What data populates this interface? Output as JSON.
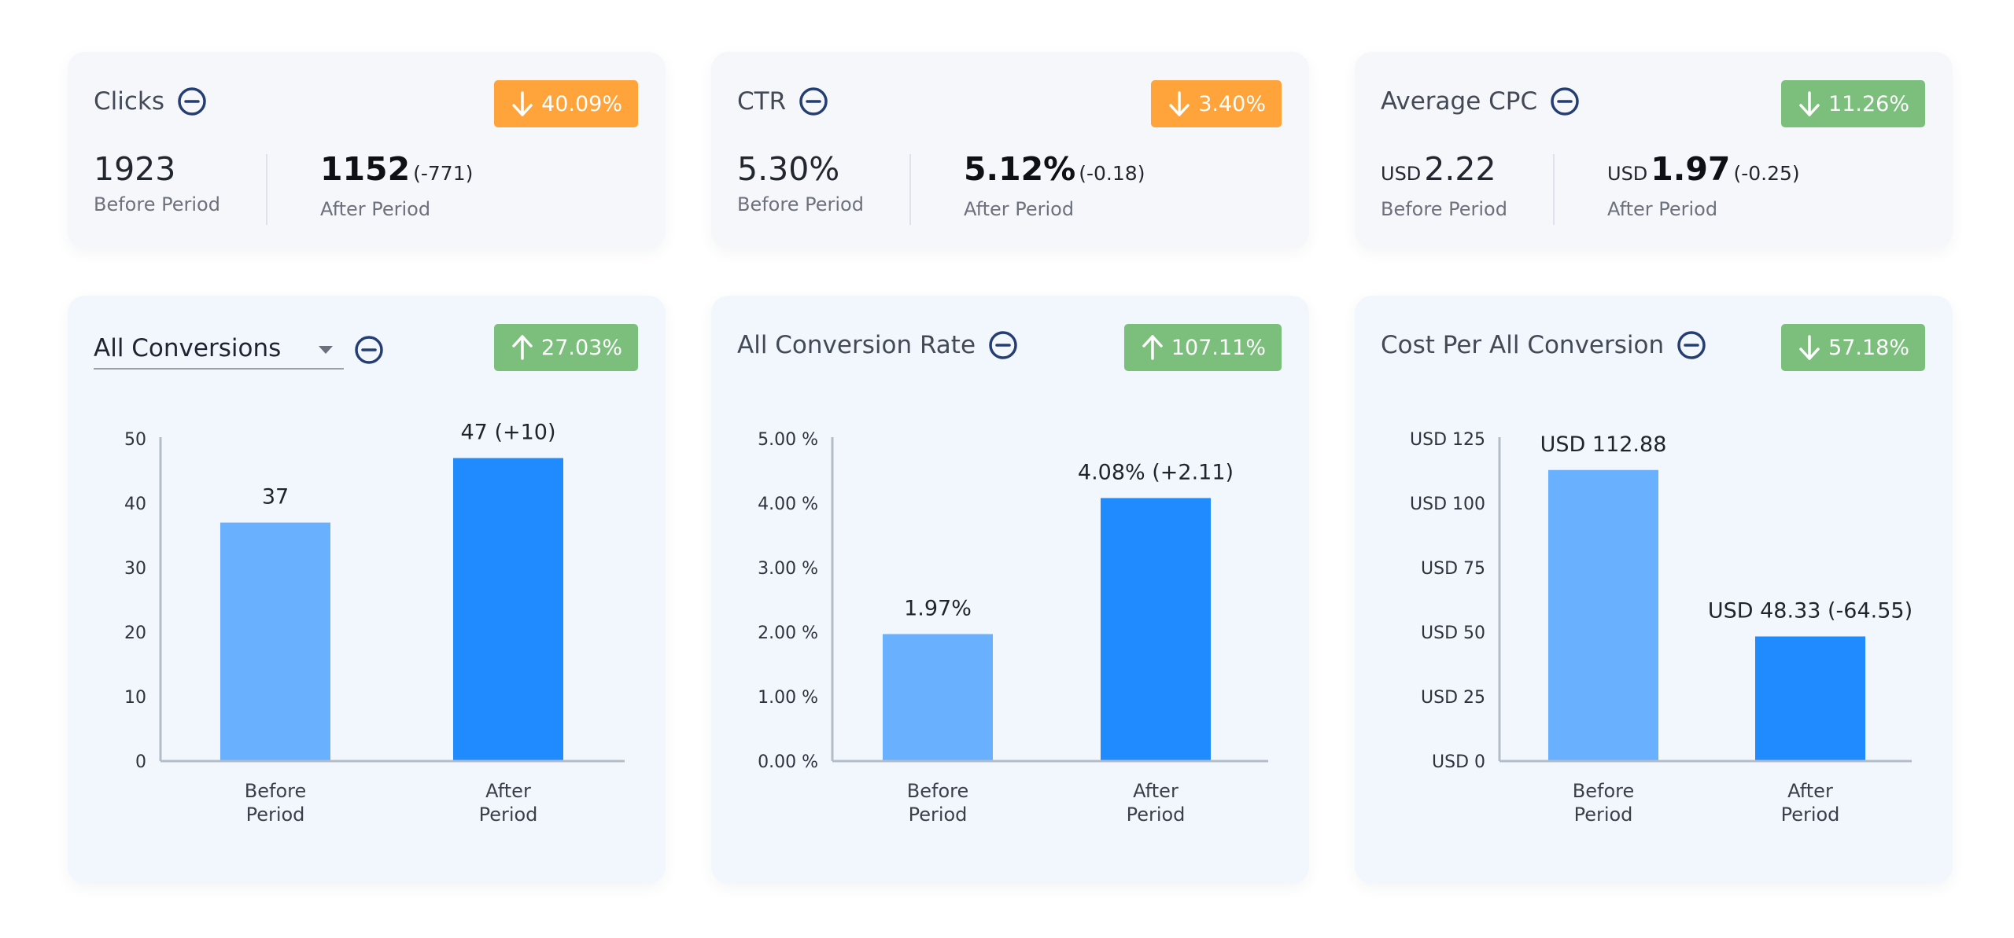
{
  "colors": {
    "orange_badge": "#ffa33a",
    "green_badge": "#7cbf7d",
    "bar_before": "#69b1ff",
    "bar_after": "#1f8bff",
    "minus_icon": "#243d73"
  },
  "stats": [
    {
      "title": "Clicks",
      "badge": {
        "direction": "down",
        "icon": "arrow-down-icon",
        "text": "40.09%",
        "color": "orange"
      },
      "before": {
        "unit": "",
        "value": "1923",
        "label": "Before Period"
      },
      "after": {
        "unit": "",
        "value": "1152",
        "delta": "(-771)",
        "label": "After Period"
      }
    },
    {
      "title": "CTR",
      "badge": {
        "direction": "down",
        "icon": "arrow-down-icon",
        "text": "3.40%",
        "color": "orange"
      },
      "before": {
        "unit": "",
        "value": "5.30%",
        "label": "Before Period"
      },
      "after": {
        "unit": "",
        "value": "5.12%",
        "delta": "(-0.18)",
        "label": "After Period"
      }
    },
    {
      "title": "Average CPC",
      "badge": {
        "direction": "down",
        "icon": "arrow-down-icon",
        "text": "11.26%",
        "color": "green"
      },
      "before": {
        "unit": "USD",
        "value": "2.22",
        "label": "Before Period"
      },
      "after": {
        "unit": "USD",
        "value": "1.97",
        "delta": "(-0.25)",
        "label": "After Period"
      }
    }
  ],
  "charts": [
    {
      "title": "All Conversions",
      "is_select": true,
      "badge": {
        "direction": "up",
        "icon": "arrow-up-icon",
        "text": "27.03%",
        "color": "green"
      }
    },
    {
      "title": "All Conversion Rate",
      "is_select": false,
      "badge": {
        "direction": "up",
        "icon": "arrow-up-icon",
        "text": "107.11%",
        "color": "green"
      }
    },
    {
      "title": "Cost Per All Conversion",
      "is_select": false,
      "badge": {
        "direction": "down",
        "icon": "arrow-down-icon",
        "text": "57.18%",
        "color": "green"
      }
    }
  ],
  "chart_data": [
    {
      "type": "bar",
      "title": "All Conversions",
      "categories": [
        [
          "Before",
          "Period"
        ],
        [
          "After",
          "Period"
        ]
      ],
      "values": [
        37,
        47
      ],
      "data_labels": [
        "37",
        "47 (+10)"
      ],
      "ylim": [
        0,
        50
      ],
      "yticks": [
        "0",
        "10",
        "20",
        "30",
        "40",
        "50"
      ],
      "grid": false
    },
    {
      "type": "bar",
      "title": "All Conversion Rate",
      "categories": [
        [
          "Before",
          "Period"
        ],
        [
          "After",
          "Period"
        ]
      ],
      "values": [
        1.97,
        4.08
      ],
      "data_labels": [
        "1.97%",
        "4.08% (+2.11)"
      ],
      "ylim": [
        0,
        5
      ],
      "yticks": [
        "0.00 %",
        "1.00 %",
        "2.00 %",
        "3.00 %",
        "4.00 %",
        "5.00 %"
      ],
      "grid": false
    },
    {
      "type": "bar",
      "title": "Cost Per All Conversion",
      "categories": [
        [
          "Before",
          "Period"
        ],
        [
          "After",
          "Period"
        ]
      ],
      "values": [
        112.88,
        48.33
      ],
      "data_labels": [
        "USD 112.88",
        "USD 48.33 (-64.55)"
      ],
      "ylim": [
        0,
        125
      ],
      "yticks": [
        "USD 0",
        "USD 25",
        "USD 50",
        "USD 75",
        "USD 100",
        "USD 125"
      ],
      "grid": false
    }
  ]
}
